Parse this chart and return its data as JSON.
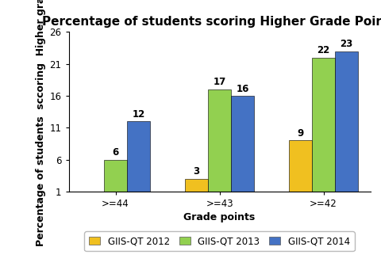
{
  "title": "Percentage of students scoring Higher Grade Points",
  "xlabel": "Grade points",
  "ylabel": "Percentage of students  sccoring  Higher grades",
  "categories": [
    ">=44",
    ">=43",
    ">=42"
  ],
  "series": {
    "GIIS-QT 2012": [
      1,
      3,
      9
    ],
    "GIIS-QT 2013": [
      6,
      17,
      22
    ],
    "GIIS-QT 2014": [
      12,
      16,
      23
    ]
  },
  "colors": {
    "GIIS-QT 2012": "#F0C020",
    "GIIS-QT 2013": "#92D050",
    "GIIS-QT 2014": "#4472C4"
  },
  "ylim": [
    1,
    26
  ],
  "yticks": [
    1,
    6,
    11,
    16,
    21,
    26
  ],
  "bar_width": 0.22,
  "background_color": "#ffffff",
  "title_fontsize": 11,
  "axis_label_fontsize": 9,
  "tick_fontsize": 8.5,
  "annotation_fontsize": 8.5,
  "legend_fontsize": 8.5
}
